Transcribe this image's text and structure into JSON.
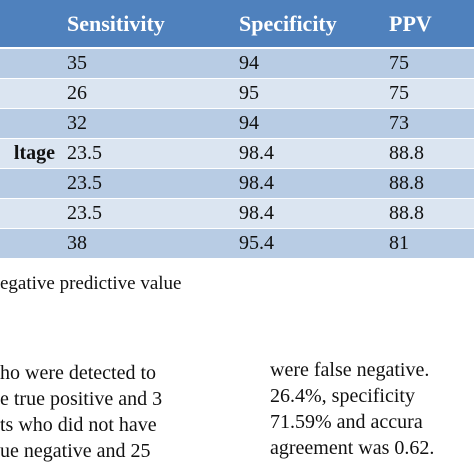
{
  "table": {
    "headers": [
      "",
      "Sensitivity",
      "Specificity",
      "PPV"
    ],
    "rows": [
      {
        "label": "",
        "values": [
          "35",
          "94",
          "75"
        ]
      },
      {
        "label": "",
        "values": [
          "26",
          "95",
          "75"
        ]
      },
      {
        "label": "",
        "values": [
          "32",
          "94",
          "73"
        ]
      },
      {
        "label": "ltage",
        "values": [
          "23.5",
          "98.4",
          "88.8"
        ]
      },
      {
        "label": "",
        "values": [
          "23.5",
          "98.4",
          "88.8"
        ]
      },
      {
        "label": "",
        "values": [
          "23.5",
          "98.4",
          "88.8"
        ]
      },
      {
        "label": "",
        "values": [
          "38",
          "95.4",
          "81"
        ]
      }
    ],
    "colors": {
      "header_bg": "#4f81bd",
      "row_shade": "#b8cce4",
      "row_light": "#dbe5f1"
    }
  },
  "footnote": "egative predictive value",
  "body_left": [
    "ho were detected to",
    "e true positive and 3",
    "ts who did not have",
    "ue negative and 25"
  ],
  "body_right": [
    "were false negative.",
    "26.4%,  specificity",
    "71.59%  and  accura",
    "agreement was 0.62."
  ]
}
